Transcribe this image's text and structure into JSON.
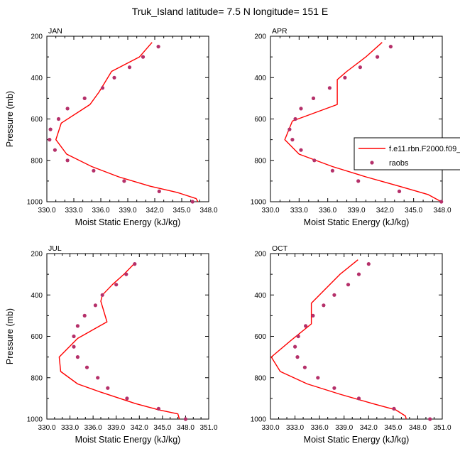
{
  "figure": {
    "title": "Truk_Island  latitude= 7.5 N longitude= 151 E"
  },
  "legend": {
    "model_label": "f.e11.rbn.F2000.f09_",
    "obs_label": "raobs",
    "model_color": "#ff0000",
    "obs_color": "#b5306a"
  },
  "chart_data": [
    {
      "type": "line",
      "panel": "JAN",
      "xlabel": "Moist Static Energy (kJ/kg)",
      "ylabel": "Pressure (mb)",
      "xlim": [
        330.0,
        348.0
      ],
      "ylim": [
        1000,
        200
      ],
      "xticks": [
        "330.0",
        "333.0",
        "336.0",
        "339.0",
        "342.0",
        "345.0",
        "348.0"
      ],
      "yticks": [
        "200",
        "400",
        "600",
        "800",
        "1000"
      ],
      "series": [
        {
          "name": "f.e11.rbn.F2000.f09_",
          "style": "line",
          "points": [
            [
              341.7,
              230
            ],
            [
              340.3,
              300
            ],
            [
              337.2,
              370
            ],
            [
              335.8,
              470
            ],
            [
              334.8,
              530
            ],
            [
              331.6,
              620
            ],
            [
              331.0,
              700
            ],
            [
              332.2,
              770
            ],
            [
              335.0,
              830
            ],
            [
              338.0,
              880
            ],
            [
              341.5,
              925
            ],
            [
              344.5,
              955
            ],
            [
              346.6,
              985
            ],
            [
              346.8,
              1000
            ]
          ]
        },
        {
          "name": "raobs",
          "style": "points",
          "points": [
            [
              342.4,
              250
            ],
            [
              340.7,
              300
            ],
            [
              339.2,
              350
            ],
            [
              337.5,
              400
            ],
            [
              336.2,
              450
            ],
            [
              334.2,
              500
            ],
            [
              332.3,
              550
            ],
            [
              331.3,
              600
            ],
            [
              330.4,
              650
            ],
            [
              330.3,
              700
            ],
            [
              330.9,
              750
            ],
            [
              332.3,
              800
            ],
            [
              335.2,
              850
            ],
            [
              338.6,
              900
            ],
            [
              342.5,
              950
            ],
            [
              346.2,
              1000
            ]
          ]
        }
      ]
    },
    {
      "type": "line",
      "panel": "APR",
      "xlabel": "Moist Static Energy (kJ/kg)",
      "ylabel": "",
      "xlim": [
        330.0,
        348.0
      ],
      "ylim": [
        1000,
        200
      ],
      "xticks": [
        "330.0",
        "333.0",
        "336.0",
        "339.0",
        "342.0",
        "345.0",
        "348.0"
      ],
      "yticks": [
        "200",
        "400",
        "600",
        "800",
        "1000"
      ],
      "series": [
        {
          "name": "f.e11.rbn.F2000.f09_",
          "style": "line",
          "points": [
            [
              341.7,
              230
            ],
            [
              340.0,
              300
            ],
            [
              338.0,
              370
            ],
            [
              337.0,
              410
            ],
            [
              337.0,
              530
            ],
            [
              332.3,
              610
            ],
            [
              331.5,
              700
            ],
            [
              333.0,
              770
            ],
            [
              336.5,
              830
            ],
            [
              340.0,
              880
            ],
            [
              343.5,
              925
            ],
            [
              346.5,
              965
            ],
            [
              347.9,
              1000
            ]
          ]
        },
        {
          "name": "raobs",
          "style": "points",
          "points": [
            [
              342.6,
              250
            ],
            [
              341.2,
              300
            ],
            [
              339.4,
              350
            ],
            [
              337.8,
              400
            ],
            [
              336.2,
              450
            ],
            [
              334.5,
              500
            ],
            [
              333.2,
              550
            ],
            [
              332.6,
              600
            ],
            [
              332.0,
              650
            ],
            [
              332.3,
              700
            ],
            [
              333.2,
              750
            ],
            [
              334.6,
              800
            ],
            [
              336.5,
              850
            ],
            [
              339.2,
              900
            ],
            [
              343.5,
              950
            ],
            [
              347.9,
              1000
            ]
          ]
        }
      ]
    },
    {
      "type": "line",
      "panel": "JUL",
      "xlabel": "Moist Static Energy (kJ/kg)",
      "ylabel": "Pressure (mb)",
      "xlim": [
        330.0,
        351.0
      ],
      "ylim": [
        1000,
        200
      ],
      "xticks": [
        "330.0",
        "333.0",
        "336.0",
        "339.0",
        "342.0",
        "345.0",
        "348.0",
        "351.0"
      ],
      "yticks": [
        "200",
        "400",
        "600",
        "800",
        "1000"
      ],
      "series": [
        {
          "name": "f.e11.rbn.F2000.f09_",
          "style": "line",
          "points": [
            [
              341.3,
              250
            ],
            [
              340.0,
              300
            ],
            [
              338.5,
              350
            ],
            [
              337.2,
              400
            ],
            [
              337.0,
              430
            ],
            [
              337.8,
              530
            ],
            [
              334.0,
              610
            ],
            [
              331.6,
              700
            ],
            [
              331.8,
              770
            ],
            [
              334.0,
              830
            ],
            [
              337.0,
              870
            ],
            [
              341.5,
              925
            ],
            [
              344.5,
              955
            ],
            [
              347.0,
              975
            ],
            [
              347.2,
              1000
            ]
          ]
        },
        {
          "name": "raobs",
          "style": "points",
          "points": [
            [
              341.4,
              250
            ],
            [
              340.3,
              300
            ],
            [
              339.0,
              350
            ],
            [
              337.2,
              400
            ],
            [
              336.3,
              450
            ],
            [
              334.9,
              500
            ],
            [
              334.0,
              550
            ],
            [
              333.5,
              600
            ],
            [
              333.5,
              650
            ],
            [
              334.0,
              700
            ],
            [
              335.2,
              750
            ],
            [
              336.6,
              800
            ],
            [
              337.9,
              850
            ],
            [
              340.4,
              900
            ],
            [
              344.5,
              950
            ],
            [
              348.0,
              1000
            ]
          ]
        }
      ]
    },
    {
      "type": "line",
      "panel": "OCT",
      "xlabel": "Moist Static Energy (kJ/kg)",
      "ylabel": "",
      "xlim": [
        330.0,
        351.0
      ],
      "ylim": [
        1000,
        200
      ],
      "xticks": [
        "330.0",
        "333.0",
        "336.0",
        "339.0",
        "342.0",
        "345.0",
        "348.0",
        "351.0"
      ],
      "yticks": [
        "200",
        "400",
        "600",
        "800",
        "1000"
      ],
      "series": [
        {
          "name": "f.e11.rbn.F2000.f09_",
          "style": "line",
          "points": [
            [
              340.7,
              230
            ],
            [
              338.5,
              300
            ],
            [
              336.5,
              380
            ],
            [
              335.0,
              440
            ],
            [
              335.0,
              540
            ],
            [
              332.5,
              620
            ],
            [
              330.1,
              700
            ],
            [
              331.2,
              770
            ],
            [
              334.5,
              830
            ],
            [
              338.5,
              880
            ],
            [
              342.5,
              925
            ],
            [
              345.3,
              955
            ],
            [
              346.5,
              985
            ],
            [
              346.6,
              1000
            ]
          ]
        },
        {
          "name": "raobs",
          "style": "points",
          "points": [
            [
              342.0,
              250
            ],
            [
              340.8,
              300
            ],
            [
              339.5,
              350
            ],
            [
              337.8,
              400
            ],
            [
              336.5,
              450
            ],
            [
              335.2,
              500
            ],
            [
              334.3,
              550
            ],
            [
              333.4,
              600
            ],
            [
              333.0,
              650
            ],
            [
              333.3,
              700
            ],
            [
              334.2,
              750
            ],
            [
              335.8,
              800
            ],
            [
              337.8,
              850
            ],
            [
              340.8,
              900
            ],
            [
              345.1,
              950
            ],
            [
              349.5,
              1000
            ]
          ]
        }
      ]
    }
  ]
}
